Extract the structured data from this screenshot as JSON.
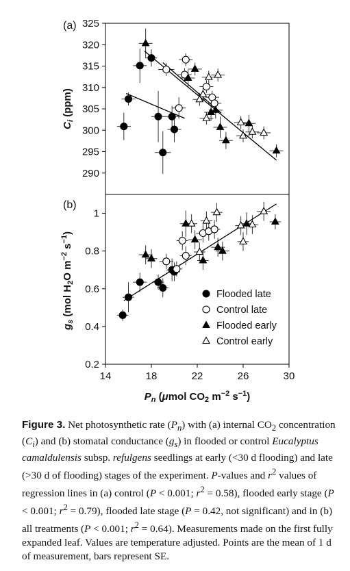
{
  "figure": {
    "panel_a_label": "(a)",
    "panel_b_label": "(b)",
    "x_ticks": [
      "14",
      "18",
      "22",
      "26",
      "30"
    ],
    "a_y_ticks": [
      "290",
      "295",
      "300",
      "305",
      "310",
      "315",
      "320",
      "325"
    ],
    "b_y_ticks": [
      "0.2",
      "0.4",
      "0.6",
      "0.8",
      "1"
    ],
    "a_ylabel": {
      "main": "C",
      "sub": "i",
      "rest": " (ppm)"
    },
    "b_ylabel": {
      "g": "g",
      "s": "s",
      "p1": " (mol H",
      "two": "2",
      "p2": "O m",
      "exp1": "−2",
      "p3": " s",
      "exp2": "−1",
      "p4": ")"
    },
    "xlabel": {
      "P": "P",
      "n": "n",
      "p1": " (",
      "mu": "μ",
      "p2": "mol CO",
      "two": "2",
      "p3": " m",
      "exp1": "−2",
      "p4": " s",
      "exp2": "−1",
      "p5": ")"
    },
    "legend": [
      "Flooded late",
      "Control late",
      "Flooded early",
      "Control early"
    ]
  },
  "caption": {
    "label": "Figure 3.",
    "s1": " Net photosynthetic rate (",
    "Pn_P": "P",
    "Pn_n": "n",
    "s2": ") with (a) internal CO",
    "co2_sub": "2",
    "s3": " concentration (",
    "Ci_C": "C",
    "Ci_i": "i",
    "s4": ") and (b) stomatal conductance (",
    "gs_g": "g",
    "gs_s": "s",
    "s5": ") in flooded or control ",
    "species": "Eucalyptus camaldulensis",
    "s6": " subsp. ",
    "subsp": "refulgens",
    "s7": " seedlings at early (<30 d flooding) and late (>30 d of flooding) stages of the experiment. ",
    "P_it": "P",
    "s8": "-values and ",
    "r_it": "r",
    "r_sup": "2",
    "s9": " values of regression lines in (a) control (",
    "t1_P": "P",
    "t1": " < 0.001; ",
    "t1_r": "r",
    "t1_sup": "2",
    "t1b": " = 0.58), flooded early stage (",
    "t2_P": "P",
    "t2": " < 0.001; ",
    "t2_r": "r",
    "t2_sup": "2",
    "t2b": " = 0.79), flooded late stage (",
    "t3_P": "P",
    "t3": " = 0.42, not significant) and in (b) all treatments (",
    "t4_P": "P",
    "t4": " < 0.001; ",
    "t4_r": "r",
    "t4_sup": "2",
    "t4b": " = 0.64). Measurements made on the first fully expanded leaf. Values are temperature adjusted. Points are the mean of 1 d of measurement, bars represent SE."
  },
  "chart_data": [
    {
      "panel": "(a)",
      "type": "scatter",
      "xlabel": "Pn (μmol CO2 m−2 s−1)",
      "ylabel": "Ci (ppm)",
      "xlim": [
        14,
        30
      ],
      "ylim": [
        285,
        325
      ],
      "x_ticks": [
        14,
        18,
        22,
        26,
        30
      ],
      "y_ticks": [
        290,
        295,
        300,
        305,
        310,
        315,
        320,
        325
      ],
      "series": [
        {
          "name": "Flooded late",
          "marker": "filled-circle",
          "points": [
            {
              "x": 15.6,
              "y": 300.9,
              "xe": 0.6,
              "ye": 3.2
            },
            {
              "x": 16.0,
              "y": 307.3,
              "xe": 0.6,
              "ye": 1.5
            },
            {
              "x": 17.0,
              "y": 315.1,
              "xe": 0.6,
              "ye": 4.0
            },
            {
              "x": 18.0,
              "y": 316.9,
              "xe": 0.5,
              "ye": 2.0
            },
            {
              "x": 18.6,
              "y": 303.2,
              "xe": 0.6,
              "ye": 6.0
            },
            {
              "x": 19.0,
              "y": 294.8,
              "xe": 0.7,
              "ye": 5.0
            },
            {
              "x": 19.8,
              "y": 303.2,
              "xe": 0.6,
              "ye": 2.5
            },
            {
              "x": 20.0,
              "y": 300.2,
              "xe": 0.6,
              "ye": 3.0
            }
          ],
          "regression": {
            "x": [
              15.8,
              20.9
            ],
            "y": [
              308.6,
              302.8
            ]
          }
        },
        {
          "name": "Control late",
          "marker": "open-circle",
          "points": [
            {
              "x": 19.3,
              "y": 314.2,
              "xe": 0.7,
              "ye": 1.5
            },
            {
              "x": 20.4,
              "y": 305.2,
              "xe": 0.6,
              "ye": 2.5
            },
            {
              "x": 20.9,
              "y": 313.0,
              "xe": 0.6,
              "ye": 1.5
            },
            {
              "x": 21.0,
              "y": 316.5,
              "xe": 0.6,
              "ye": 1.5
            },
            {
              "x": 22.8,
              "y": 310.2,
              "xe": 0.6,
              "ye": 1.5
            },
            {
              "x": 23.3,
              "y": 307.7,
              "xe": 0.6,
              "ye": 1.5
            },
            {
              "x": 23.5,
              "y": 306.3,
              "xe": 0.6,
              "ye": 1.5
            }
          ],
          "regression": {
            "x": [
              19.0,
              24.1
            ],
            "y": [
              315.8,
              304.0
            ]
          }
        },
        {
          "name": "Flooded early",
          "marker": "filled-triangle",
          "points": [
            {
              "x": 17.5,
              "y": 320.3,
              "xe": 0.6,
              "ye": 3.5
            },
            {
              "x": 21.2,
              "y": 312.2,
              "xe": 0.6,
              "ye": 2.0
            },
            {
              "x": 21.8,
              "y": 314.3,
              "xe": 0.6,
              "ye": 1.5
            },
            {
              "x": 23.2,
              "y": 304.2,
              "xe": 0.6,
              "ye": 2.0
            },
            {
              "x": 23.6,
              "y": 304.7,
              "xe": 0.6,
              "ye": 2.0
            },
            {
              "x": 24.0,
              "y": 300.7,
              "xe": 0.6,
              "ye": 2.5
            },
            {
              "x": 24.5,
              "y": 297.6,
              "xe": 0.6,
              "ye": 2.0
            },
            {
              "x": 26.5,
              "y": 301.6,
              "xe": 0.6,
              "ye": 2.0
            },
            {
              "x": 28.9,
              "y": 295.2,
              "xe": 0.6,
              "ye": 1.5
            }
          ],
          "regression": {
            "x": [
              17.4,
              28.9
            ],
            "y": [
              318.5,
              293.0
            ]
          }
        },
        {
          "name": "Control early",
          "marker": "open-triangle",
          "points": [
            {
              "x": 22.2,
              "y": 307.2,
              "xe": 0.6,
              "ye": 1.5
            },
            {
              "x": 22.5,
              "y": 308.4,
              "xe": 0.6,
              "ye": 1.5
            },
            {
              "x": 22.8,
              "y": 302.8,
              "xe": 0.6,
              "ye": 1.5
            },
            {
              "x": 23.0,
              "y": 312.4,
              "xe": 0.6,
              "ye": 1.5
            },
            {
              "x": 23.8,
              "y": 312.9,
              "xe": 0.6,
              "ye": 1.5
            },
            {
              "x": 25.8,
              "y": 301.8,
              "xe": 0.6,
              "ye": 1.5
            },
            {
              "x": 26.0,
              "y": 298.7,
              "xe": 0.6,
              "ye": 1.5
            },
            {
              "x": 26.8,
              "y": 299.6,
              "xe": 0.6,
              "ye": 1.5
            },
            {
              "x": 27.8,
              "y": 299.4,
              "xe": 0.6,
              "ye": 1.5
            }
          ]
        }
      ]
    },
    {
      "panel": "(b)",
      "type": "scatter",
      "xlabel": "Pn (μmol CO2 m−2 s−1)",
      "ylabel": "gs (mol H2O m−2 s−1)",
      "xlim": [
        14,
        30
      ],
      "ylim": [
        0.2,
        1.1
      ],
      "x_ticks": [
        14,
        18,
        22,
        26,
        30
      ],
      "y_ticks": [
        0.2,
        0.4,
        0.6,
        0.8,
        1.0
      ],
      "series": [
        {
          "name": "Flooded late",
          "marker": "filled-circle",
          "points": [
            {
              "x": 15.5,
              "y": 0.46,
              "xe": 0.5,
              "ye": 0.03
            },
            {
              "x": 16.0,
              "y": 0.555,
              "xe": 0.5,
              "ye": 0.08
            },
            {
              "x": 17.0,
              "y": 0.635,
              "xe": 0.6,
              "ye": 0.05
            },
            {
              "x": 18.6,
              "y": 0.635,
              "xe": 0.5,
              "ye": 0.04
            },
            {
              "x": 19.0,
              "y": 0.605,
              "xe": 0.5,
              "ye": 0.05
            },
            {
              "x": 19.8,
              "y": 0.7,
              "xe": 0.5,
              "ye": 0.06
            },
            {
              "x": 20.0,
              "y": 0.69,
              "xe": 0.5,
              "ye": 0.05
            }
          ]
        },
        {
          "name": "Control late",
          "marker": "open-circle",
          "points": [
            {
              "x": 19.3,
              "y": 0.745,
              "xe": 0.6,
              "ye": 0.04
            },
            {
              "x": 20.2,
              "y": 0.705,
              "xe": 0.5,
              "ye": 0.04
            },
            {
              "x": 20.7,
              "y": 0.855,
              "xe": 0.5,
              "ye": 0.05
            },
            {
              "x": 21.0,
              "y": 0.775,
              "xe": 0.5,
              "ye": 0.05
            },
            {
              "x": 22.5,
              "y": 0.895,
              "xe": 0.6,
              "ye": 0.05
            },
            {
              "x": 23.0,
              "y": 0.905,
              "xe": 0.5,
              "ye": 0.05
            },
            {
              "x": 23.5,
              "y": 0.915,
              "xe": 0.5,
              "ye": 0.05
            }
          ]
        },
        {
          "name": "Flooded early",
          "marker": "filled-triangle",
          "points": [
            {
              "x": 17.5,
              "y": 0.78,
              "xe": 0.6,
              "ye": 0.05
            },
            {
              "x": 18.0,
              "y": 0.76,
              "xe": 0.5,
              "ye": 0.05
            },
            {
              "x": 21.0,
              "y": 0.945,
              "xe": 0.5,
              "ye": 0.07
            },
            {
              "x": 21.8,
              "y": 0.86,
              "xe": 0.6,
              "ye": 0.05
            },
            {
              "x": 22.5,
              "y": 0.75,
              "xe": 0.5,
              "ye": 0.05
            },
            {
              "x": 23.8,
              "y": 0.82,
              "xe": 0.6,
              "ye": 0.05
            },
            {
              "x": 24.2,
              "y": 0.8,
              "xe": 0.6,
              "ye": 0.05
            },
            {
              "x": 26.3,
              "y": 0.945,
              "xe": 0.6,
              "ye": 0.06
            },
            {
              "x": 28.8,
              "y": 0.955,
              "xe": 0.5,
              "ye": 0.04
            }
          ]
        },
        {
          "name": "Control early",
          "marker": "open-triangle",
          "points": [
            {
              "x": 21.5,
              "y": 0.945,
              "xe": 0.5,
              "ye": 0.05
            },
            {
              "x": 22.2,
              "y": 0.795,
              "xe": 0.5,
              "ye": 0.05
            },
            {
              "x": 22.8,
              "y": 0.96,
              "xe": 0.5,
              "ye": 0.05
            },
            {
              "x": 23.7,
              "y": 1.005,
              "xe": 0.5,
              "ye": 0.05
            },
            {
              "x": 25.8,
              "y": 0.935,
              "xe": 0.5,
              "ye": 0.05
            },
            {
              "x": 26.0,
              "y": 0.85,
              "xe": 0.5,
              "ye": 0.05
            },
            {
              "x": 26.8,
              "y": 0.94,
              "xe": 0.5,
              "ye": 0.05
            },
            {
              "x": 27.8,
              "y": 1.01,
              "xe": 0.6,
              "ye": 0.05
            }
          ]
        }
      ],
      "regression": {
        "x": [
          15.6,
          28.9
        ],
        "y": [
          0.537,
          1.05
        ]
      }
    }
  ]
}
